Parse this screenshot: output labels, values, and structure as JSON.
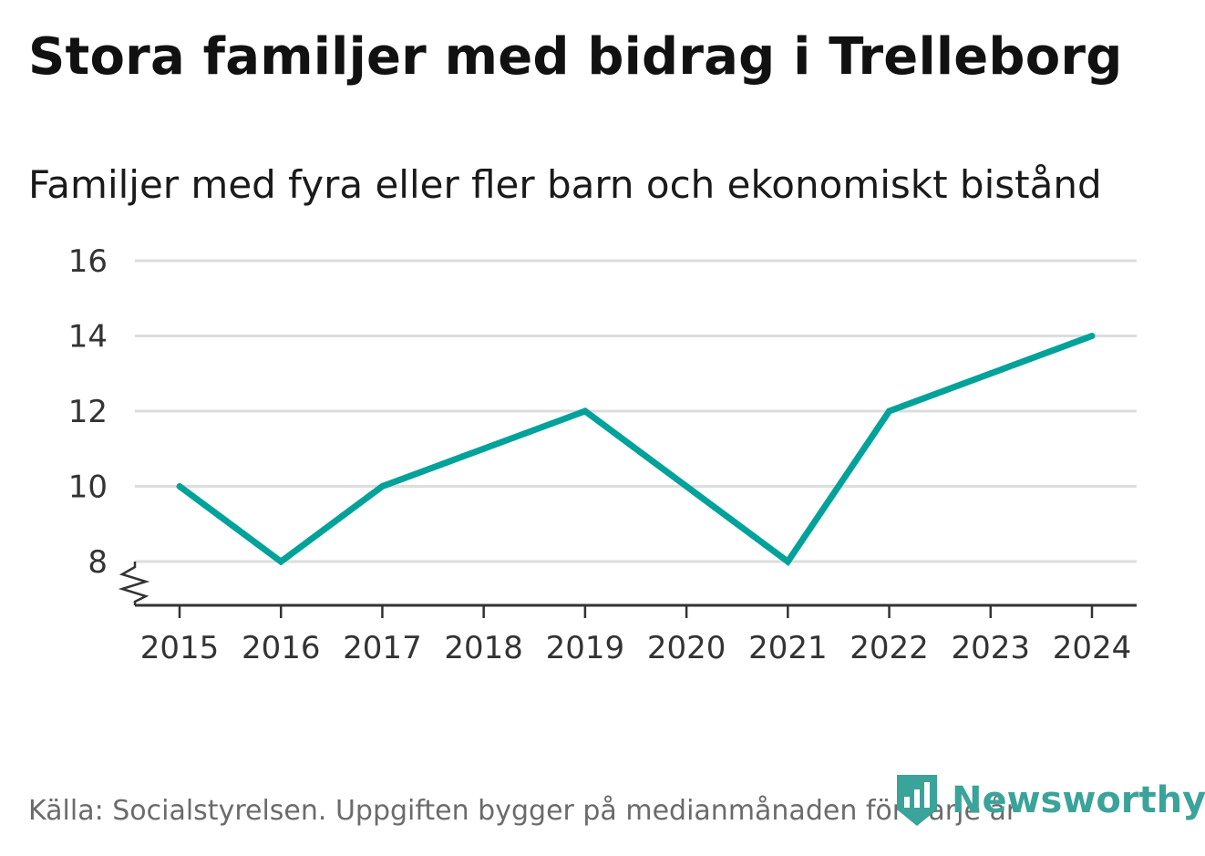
{
  "header": {
    "title": "Stora familjer med bidrag i Trelleborg",
    "subtitle": "Familjer med fyra eller fler barn och ekonomiskt bistånd"
  },
  "footer": {
    "source": "Källa: Socialstyrelsen. Uppgiften bygger på medianmånaden för varje år",
    "brand": "Newsworthy"
  },
  "colors": {
    "line": "#00a29a",
    "grid": "#dddddd",
    "axis": "#333333",
    "brand": "#3aa39a"
  },
  "chart_data": {
    "type": "line",
    "title": "Stora familjer med bidrag i Trelleborg",
    "subtitle": "Familjer med fyra eller fler barn och ekonomiskt bistånd",
    "xlabel": "",
    "ylabel": "",
    "x": [
      "2015",
      "2016",
      "2017",
      "2018",
      "2019",
      "2020",
      "2021",
      "2022",
      "2023",
      "2024"
    ],
    "series": [
      {
        "name": "Familjer med fyra eller fler barn och ekonomiskt bistånd",
        "values": [
          10,
          8,
          10,
          11,
          12,
          10,
          8,
          12,
          13,
          14
        ]
      }
    ],
    "ylim": [
      8,
      16
    ],
    "yticks": [
      "8",
      "10",
      "12",
      "14",
      "16"
    ],
    "axis_break": true,
    "grid": true,
    "legend": "none"
  }
}
